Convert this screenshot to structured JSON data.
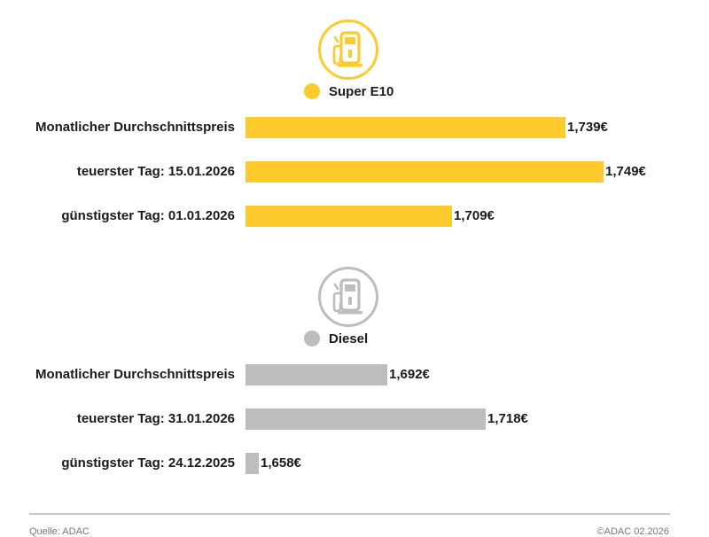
{
  "chart_data": [
    {
      "type": "bar",
      "orientation": "horizontal",
      "series_name": "Super E10",
      "icon": "fuel-pump-icon",
      "color": "#fecb2f",
      "categories": [
        "Monatlicher Durchschnittspreis",
        "teuerster Tag: 15.01.2026",
        "günstigster Tag: 01.01.2026"
      ],
      "values": [
        1.739,
        1.749,
        1.709
      ],
      "value_labels": [
        "1,739€",
        "1,749€",
        "1,709€"
      ]
    },
    {
      "type": "bar",
      "orientation": "horizontal",
      "series_name": "Diesel",
      "icon": "fuel-pump-icon",
      "color": "#bdbdbd",
      "categories": [
        "Monatlicher Durchschnittspreis",
        "teuerster Tag: 31.01.2026",
        "günstigster Tag: 24.12.2025"
      ],
      "values": [
        1.692,
        1.718,
        1.658
      ],
      "value_labels": [
        "1,692€",
        "1,718€",
        "1,658€"
      ]
    }
  ],
  "footer": {
    "source": "Quelle: ADAC",
    "copyright": "©ADAC 02.2026"
  }
}
